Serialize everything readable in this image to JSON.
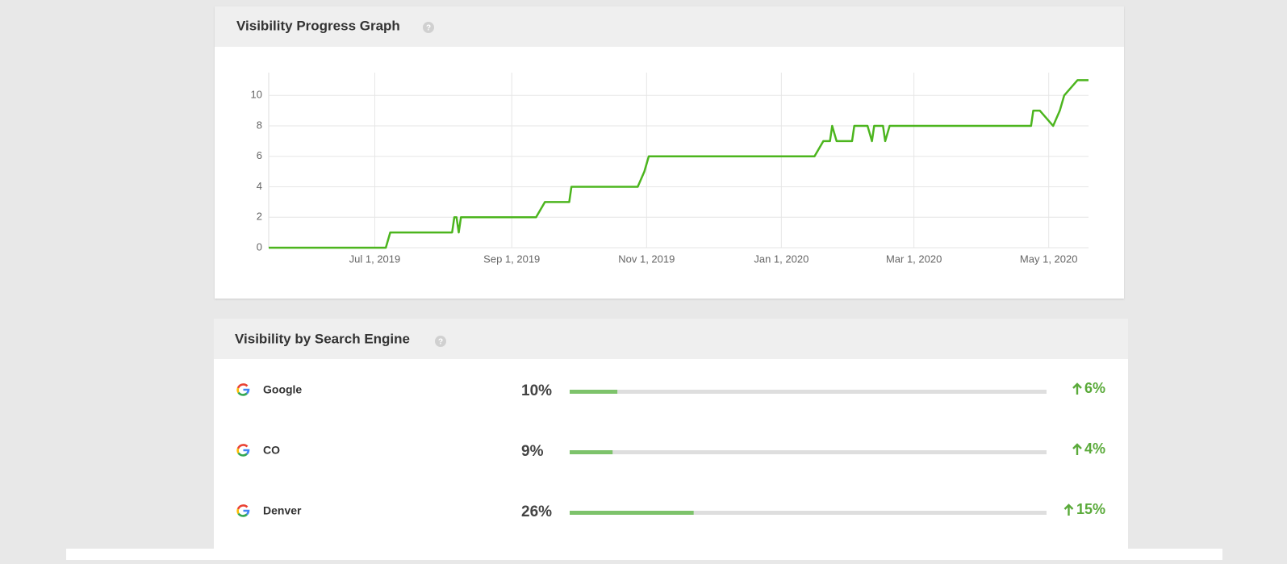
{
  "chart_data": {
    "type": "line",
    "title": "Visibility Progress Graph",
    "x": [
      "2019-05-14",
      "2019-07-06",
      "2019-07-08",
      "2019-08-05",
      "2019-08-06",
      "2019-08-07",
      "2019-08-08",
      "2019-08-09",
      "2019-09-12",
      "2019-09-16",
      "2019-09-27",
      "2019-09-28",
      "2019-10-28",
      "2019-10-31",
      "2019-11-02",
      "2020-01-16",
      "2020-01-20",
      "2020-01-23",
      "2020-01-24",
      "2020-01-26",
      "2020-02-02",
      "2020-02-03",
      "2020-02-09",
      "2020-02-11",
      "2020-02-12",
      "2020-02-16",
      "2020-02-17",
      "2020-02-19",
      "2020-04-23",
      "2020-04-24",
      "2020-04-27",
      "2020-05-03",
      "2020-05-06",
      "2020-05-08",
      "2020-05-14",
      "2020-05-19"
    ],
    "series": [
      {
        "color": "#4cb51e",
        "values": [
          0,
          0,
          1,
          1,
          2,
          2,
          1,
          2,
          2,
          3,
          3,
          4,
          4,
          5,
          6,
          6,
          7,
          7,
          8,
          7,
          7,
          8,
          8,
          7,
          8,
          8,
          7,
          8,
          8,
          9,
          9,
          8,
          9,
          10,
          11,
          11
        ]
      }
    ],
    "xlim": [
      "2019-05-14",
      "2020-05-19"
    ],
    "xticks": [
      {
        "value": "2019-07-01",
        "label": "Jul 1, 2019"
      },
      {
        "value": "2019-09-01",
        "label": "Sep 1, 2019"
      },
      {
        "value": "2019-11-01",
        "label": "Nov 1, 2019"
      },
      {
        "value": "2020-01-01",
        "label": "Jan 1, 2020"
      },
      {
        "value": "2020-03-01",
        "label": "Mar 1, 2020"
      },
      {
        "value": "2020-05-01",
        "label": "May 1, 2020"
      }
    ],
    "ylim": [
      0,
      11.5
    ],
    "yticks": [
      0,
      2,
      4,
      6,
      8,
      10
    ],
    "grid": true
  },
  "engines": {
    "title": "Visibility by Search Engine",
    "bar_color": "#7dc36b",
    "scale_max": 100,
    "rows": [
      {
        "name": "Google",
        "value": 10,
        "value_label": "10%",
        "change": "6%"
      },
      {
        "name": "CO",
        "value": 9,
        "value_label": "9%",
        "change": "4%"
      },
      {
        "name": "Denver",
        "value": 26,
        "value_label": "26%",
        "change": "15%"
      }
    ]
  }
}
